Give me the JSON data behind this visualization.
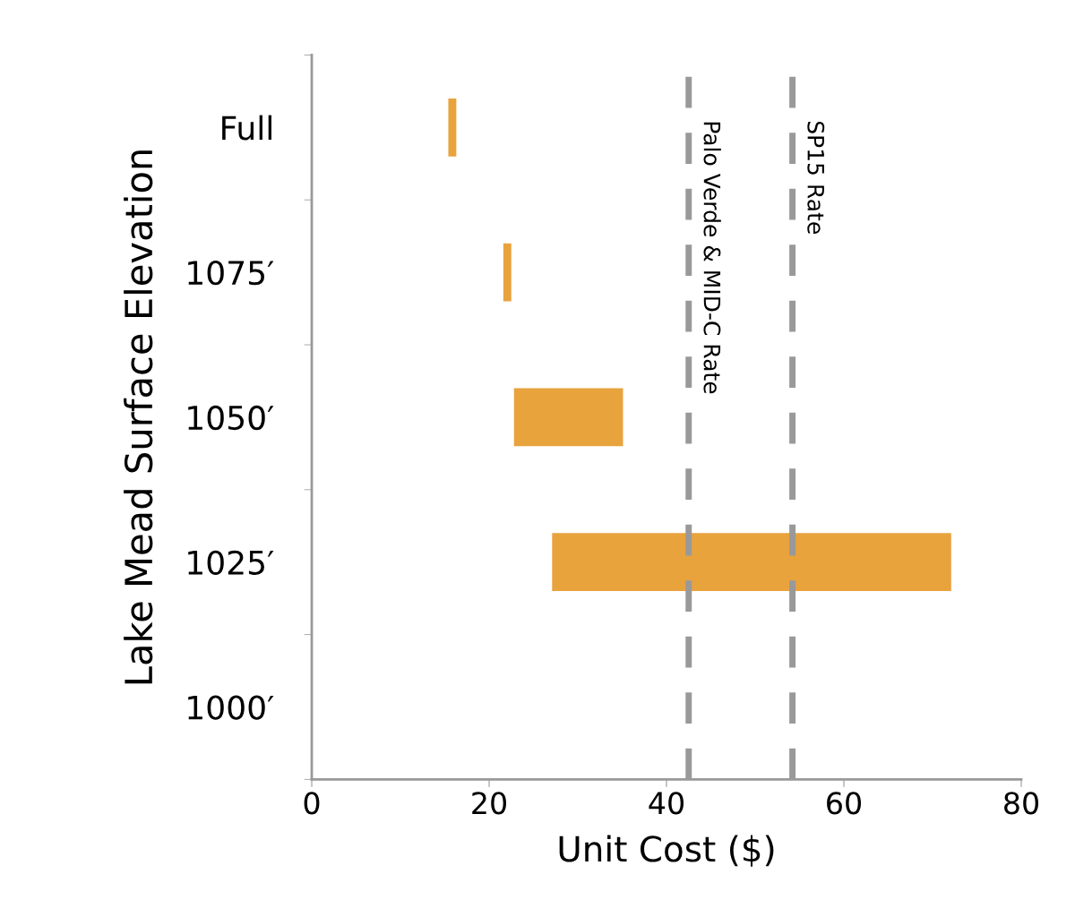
{
  "chart_data": {
    "type": "bar",
    "orientation": "horizontal",
    "xlabel": "Unit Cost ($)",
    "ylabel": "Lake Mead Surface Elevation",
    "categories": [
      "Full",
      "1075′",
      "1050′",
      "1025′",
      "1000′"
    ],
    "base": [
      15.4,
      21.6,
      22.8,
      27.1,
      null
    ],
    "values": [
      0.9,
      0.9,
      12.3,
      45.0,
      null
    ],
    "color": "#e8a33d",
    "xlim": [
      0,
      80
    ],
    "xticks": [
      0,
      20,
      40,
      60,
      80
    ],
    "grid": false,
    "ref_lines": [
      {
        "axis": "x",
        "value": 42.5,
        "label": "Palo Verde & MID-C Rate",
        "color": "#999999",
        "line_style": "dashed"
      },
      {
        "axis": "x",
        "value": 54.2,
        "label": "SP15 Rate",
        "color": "#999999",
        "line_style": "dashed"
      }
    ]
  }
}
